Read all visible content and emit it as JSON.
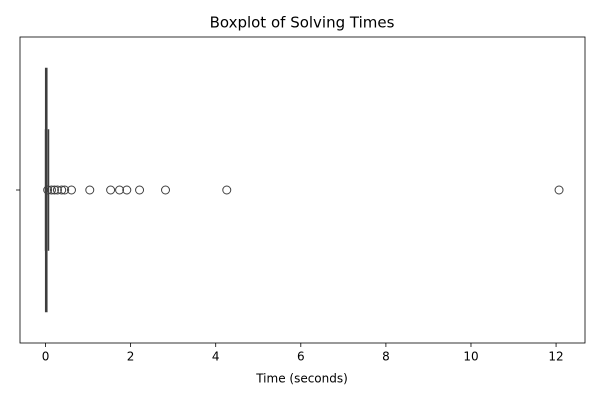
{
  "chart_data": {
    "type": "box",
    "title": "Boxplot of Solving Times",
    "x_label": "Time (seconds)",
    "xlim": [
      -0.6,
      12.68
    ],
    "xticks": [
      0,
      2,
      4,
      6,
      8,
      10,
      12
    ],
    "color": "#4c72b0",
    "line_color": "#3f3f3f",
    "boxes": [
      {
        "whislo": 0.001,
        "q1": 0.004,
        "med": 0.01,
        "q3": 0.03,
        "whishi": 0.07,
        "fliers": [
          0.05,
          0.14,
          0.21,
          0.28,
          0.38,
          0.45,
          0.61,
          1.04,
          1.53,
          1.74,
          1.91,
          2.21,
          2.82,
          4.26,
          12.07
        ]
      }
    ]
  }
}
